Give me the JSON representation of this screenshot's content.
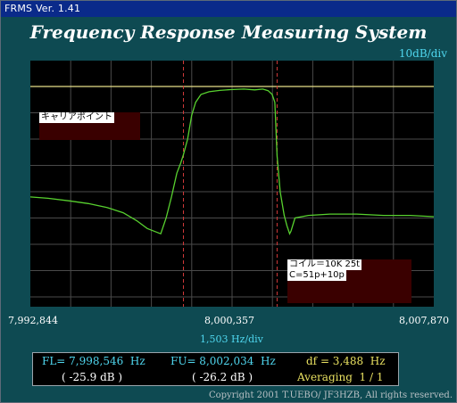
{
  "window": {
    "title": "FRMS  Ver. 1.41"
  },
  "header": {
    "title": "Frequency Response Measuring System"
  },
  "plot": {
    "y_scale": "10dB/div",
    "x_scale": "1,503  Hz/div",
    "x_ticks": [
      "7,992,844",
      "8,000,357",
      "8,007,870"
    ]
  },
  "callouts": {
    "carrier_point": "キャリアポイント",
    "coil_line1": "コイル＝10K  25t",
    "coil_line2": "C=51p+10p"
  },
  "readout": {
    "fl_label": "FL= 7,998,546  Hz",
    "fu_label": "FU= 8,002,034  Hz",
    "df_label": "df = 3,488  Hz",
    "fl_db": "( -25.9 dB )",
    "fu_db": "( -26.2 dB )",
    "averaging": "Averaging  1 / 1"
  },
  "footer": {
    "copyright": "Copyright 2001 T.UEBO/ JF3HZB, All rights reserved."
  },
  "colors": {
    "background": "#0e4a52",
    "trace": "#58d12f",
    "reference_line": "#e8e08a",
    "marker_line": "#d23a3a",
    "grid": "#4a4a4a",
    "cyan_text": "#4fd6ee",
    "yellow_text": "#e8e060"
  },
  "chart_data": {
    "type": "line",
    "title": "",
    "xlabel": "1,503  Hz/div",
    "ylabel": "10dB/div",
    "xlim": [
      7992844,
      8007870
    ],
    "x_ticks": [
      7992844,
      8000357,
      8007870
    ],
    "grid": true,
    "markers": [
      {
        "name": "FL",
        "x": 7998546,
        "level_db": -25.9
      },
      {
        "name": "FU",
        "x": 8002034,
        "level_db": -26.2
      }
    ],
    "series": [
      {
        "x": [
          7992844,
          7993500,
          7994300,
          7995000,
          7995700,
          7996300,
          7996800,
          7997200,
          7997700,
          7997900,
          7998100,
          7998300,
          7998450,
          7998546,
          7998700,
          7998850,
          7999000,
          7999200,
          7999500,
          7999900,
          8000300,
          8000800,
          8001200,
          8001500,
          8001700,
          8001850,
          8001950,
          8002034,
          8002150,
          8002300,
          8002400,
          8002500,
          8002550,
          8002700,
          8003200,
          8004000,
          8005000,
          8006000,
          8007000,
          8007870
        ],
        "y": [
          -42.0,
          -42.5,
          -43.5,
          -44.5,
          -46.0,
          -48.0,
          -51.0,
          -54.0,
          -56.0,
          -50.0,
          -42.0,
          -33.0,
          -29.0,
          -25.9,
          -20.0,
          -11.0,
          -6.0,
          -3.0,
          -2.0,
          -1.5,
          -1.2,
          -1.0,
          -1.3,
          -1.0,
          -1.6,
          -3.0,
          -6.0,
          -26.2,
          -40.0,
          -49.0,
          -53.0,
          -56.0,
          -55.0,
          -50.0,
          -49.0,
          -48.5,
          -48.5,
          -49.0,
          -49.0,
          -49.5
        ]
      }
    ]
  }
}
